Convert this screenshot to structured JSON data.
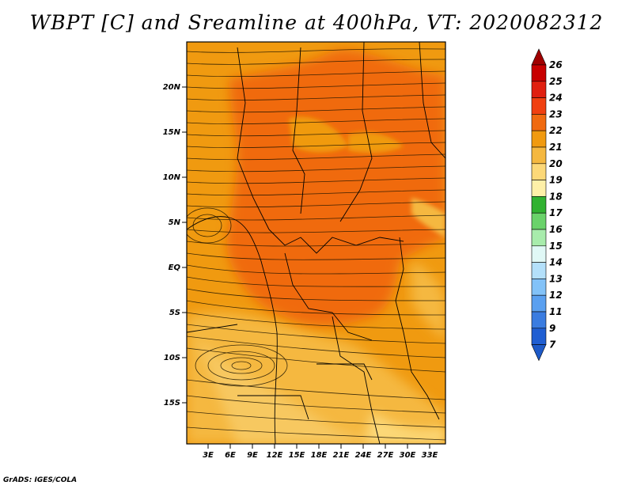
{
  "title": "WBPT [C] and Sreamline at 400hPa, VT: 2020082312",
  "credit": "GrADS: IGES/COLA",
  "map": {
    "lat_labels": [
      "20N",
      "15N",
      "10N",
      "5N",
      "EQ",
      "5S",
      "10S",
      "15S"
    ],
    "lon_labels": [
      "3E",
      "6E",
      "9E",
      "12E",
      "15E",
      "18E",
      "21E",
      "24E",
      "27E",
      "30E",
      "33E"
    ]
  },
  "colorbar": {
    "labels": [
      "26",
      "25",
      "24",
      "23",
      "22",
      "21",
      "20",
      "19",
      "18",
      "17",
      "16",
      "15",
      "14",
      "13",
      "12",
      "11",
      "9",
      "7"
    ],
    "colors": [
      "#a00000",
      "#c80000",
      "#e02010",
      "#f04010",
      "#f06a10",
      "#f09a10",
      "#f5b840",
      "#fcd878",
      "#fef0a8",
      "#31b231",
      "#6ad26a",
      "#a8ecac",
      "#e0f8f6",
      "#b4e0fa",
      "#82c2f8",
      "#5aa0f0",
      "#3a7ce0",
      "#1f5ed2",
      "#1e5ac8"
    ]
  }
}
